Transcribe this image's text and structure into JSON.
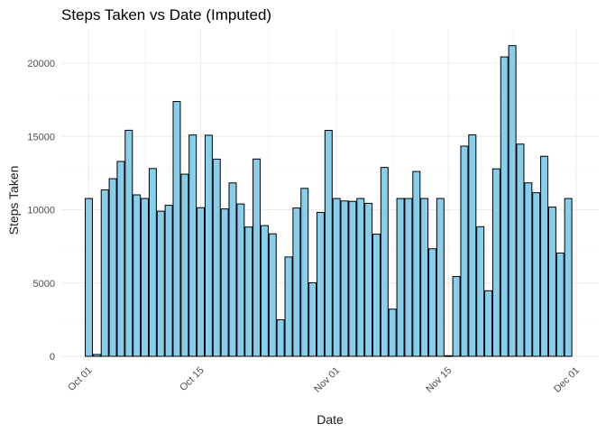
{
  "chart_data": {
    "type": "bar",
    "title": "Steps Taken vs Date (Imputed)",
    "xlabel": "Date",
    "ylabel": "Steps Taken",
    "ylim": [
      0,
      22000
    ],
    "grid": true,
    "bar_color": "#87CEEB",
    "bar_outline_color": "#000000",
    "x_ticks": [
      "Oct 01",
      "Oct 15",
      "Nov 01",
      "Nov 15",
      "Dec 01"
    ],
    "y_ticks": [
      "0",
      "5000",
      "10000",
      "15000",
      "20000"
    ],
    "categories": [
      "2012-10-01",
      "2012-10-02",
      "2012-10-03",
      "2012-10-04",
      "2012-10-05",
      "2012-10-06",
      "2012-10-07",
      "2012-10-08",
      "2012-10-09",
      "2012-10-10",
      "2012-10-11",
      "2012-10-12",
      "2012-10-13",
      "2012-10-14",
      "2012-10-15",
      "2012-10-16",
      "2012-10-17",
      "2012-10-18",
      "2012-10-19",
      "2012-10-20",
      "2012-10-21",
      "2012-10-22",
      "2012-10-23",
      "2012-10-24",
      "2012-10-25",
      "2012-10-26",
      "2012-10-27",
      "2012-10-28",
      "2012-10-29",
      "2012-10-30",
      "2012-10-31",
      "2012-11-01",
      "2012-11-02",
      "2012-11-03",
      "2012-11-04",
      "2012-11-05",
      "2012-11-06",
      "2012-11-07",
      "2012-11-08",
      "2012-11-09",
      "2012-11-10",
      "2012-11-11",
      "2012-11-12",
      "2012-11-13",
      "2012-11-14",
      "2012-11-15",
      "2012-11-16",
      "2012-11-17",
      "2012-11-18",
      "2012-11-19",
      "2012-11-20",
      "2012-11-21",
      "2012-11-22",
      "2012-11-23",
      "2012-11-24",
      "2012-11-25",
      "2012-11-26",
      "2012-11-27",
      "2012-11-28",
      "2012-11-29",
      "2012-11-30"
    ],
    "values": [
      10766,
      126,
      11352,
      12116,
      13294,
      15420,
      11015,
      10766,
      12811,
      9900,
      10304,
      17382,
      12426,
      15098,
      10139,
      15084,
      13452,
      10056,
      11829,
      10395,
      8821,
      13460,
      8918,
      8355,
      2492,
      6778,
      10119,
      11458,
      5018,
      9819,
      15414,
      10766,
      10600,
      10571,
      10766,
      10439,
      8334,
      12883,
      3219,
      10766,
      10766,
      12608,
      10765,
      7336,
      10766,
      41,
      5441,
      14339,
      15110,
      8841,
      4472,
      12787,
      20427,
      21194,
      14478,
      11834,
      11162,
      13646,
      10183,
      7047,
      10766
    ]
  }
}
